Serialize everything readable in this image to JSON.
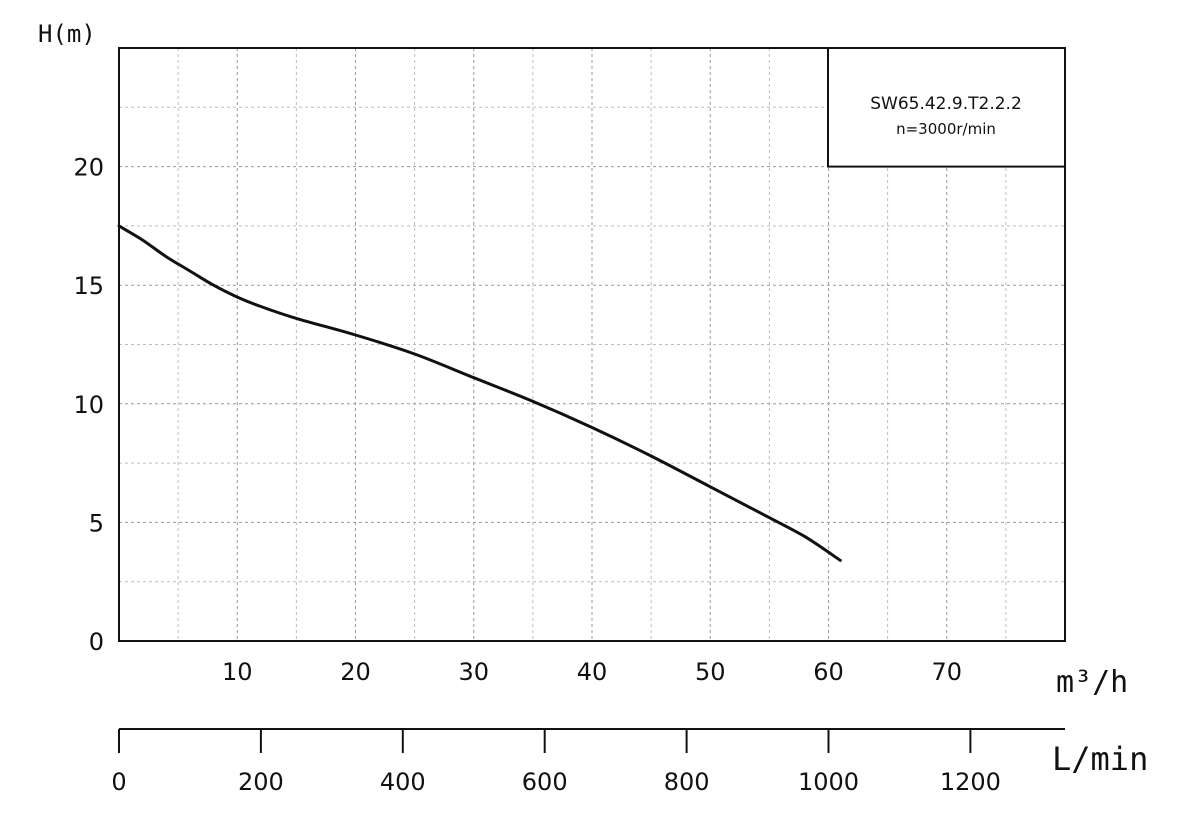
{
  "chart_data": {
    "type": "line",
    "ylabel": "H(m)",
    "xlabel": "m³/h",
    "x2label": "L/min",
    "xlim": [
      0,
      80
    ],
    "ylim": [
      0,
      25
    ],
    "x_ticks": [
      10,
      20,
      30,
      40,
      50,
      60,
      70
    ],
    "y_ticks": [
      0,
      5,
      10,
      15,
      20
    ],
    "x2lim": [
      0,
      1333.3
    ],
    "x2_ticks": [
      0,
      200,
      400,
      600,
      800,
      1000,
      1200
    ],
    "grid": true,
    "legend": {
      "placement": "top-right",
      "line1": "SW65.42.9.T2.2.2",
      "line2": "n=3000r/min"
    },
    "series": [
      {
        "x": [
          0,
          2,
          4,
          6,
          8,
          10,
          12,
          15,
          20,
          25,
          30,
          35,
          40,
          45,
          50,
          55,
          58,
          61
        ],
        "y": [
          17.5,
          16.9,
          16.2,
          15.6,
          15.0,
          14.5,
          14.1,
          13.6,
          12.9,
          12.1,
          11.1,
          10.1,
          9.0,
          7.8,
          6.5,
          5.2,
          4.4,
          3.4
        ]
      }
    ]
  }
}
